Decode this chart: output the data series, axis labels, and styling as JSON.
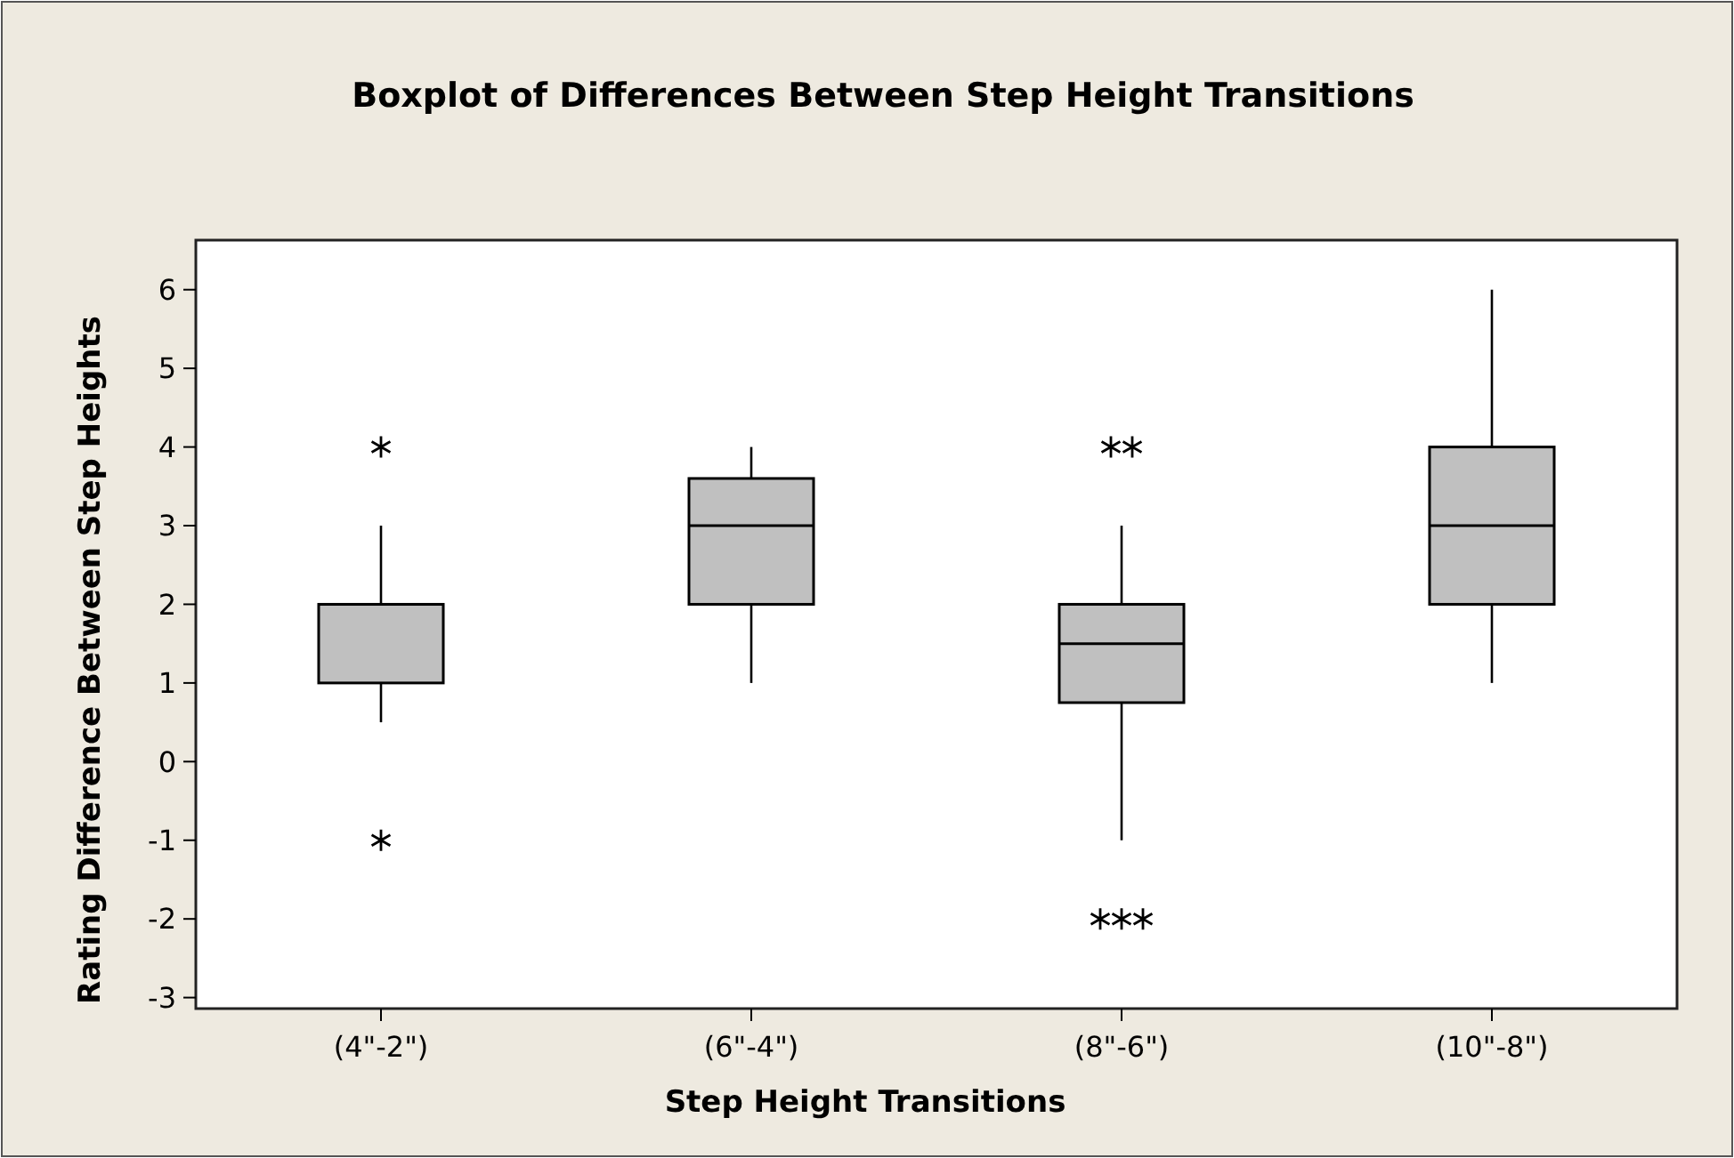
{
  "chart_data": {
    "type": "box",
    "title": "Boxplot of Differences Between Step Height Transitions",
    "xlabel": "Step Height Transitions",
    "ylabel": "Rating Difference Between Step Heights",
    "categories": [
      "(4\"-2\")",
      "(6\"-4\")",
      "(8\"-6\")",
      "(10\"-8\")"
    ],
    "boxes": [
      {
        "low": 0.5,
        "q1": 1,
        "median": 2,
        "q3": 2,
        "high": 3,
        "outliers": [
          4,
          -1
        ]
      },
      {
        "low": 1,
        "q1": 2,
        "median": 3,
        "q3": 3.6,
        "high": 4
      },
      {
        "low": -1,
        "q1": 0.75,
        "median": 1.5,
        "q3": 2,
        "high": 3,
        "outliers": [
          4,
          4,
          -2,
          -2,
          -2
        ]
      },
      {
        "low": 1,
        "q1": 2,
        "median": 3,
        "q3": 4,
        "high": 6
      }
    ],
    "color": "#c0c0c0",
    "marker": "star",
    "ylim": [
      -3.14,
      6.63
    ],
    "yticks": [
      -3,
      -2,
      -1,
      0,
      1,
      2,
      3,
      4,
      5,
      6
    ]
  }
}
